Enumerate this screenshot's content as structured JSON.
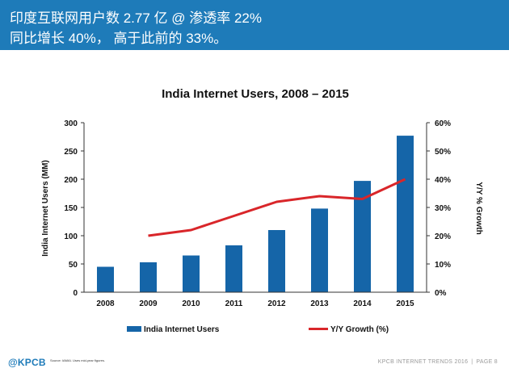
{
  "header": {
    "line1": "印度互联网用户数 2.77 亿 @ 渗透率 22%",
    "line2": "同比增长 40%， 高于此前的 33%。"
  },
  "chart_data": {
    "type": "bar",
    "title": "India Internet Users, 2008 – 2015",
    "categories": [
      "2008",
      "2009",
      "2010",
      "2011",
      "2012",
      "2013",
      "2014",
      "2015"
    ],
    "series": [
      {
        "name": "India Internet Users",
        "type": "bar",
        "axis": "left",
        "color": "#1565a8",
        "values": [
          45,
          53,
          65,
          83,
          110,
          148,
          197,
          277
        ]
      },
      {
        "name": "Y/Y Growth (%)",
        "type": "line",
        "axis": "right",
        "color": "#d9262a",
        "values": [
          null,
          20,
          22,
          27,
          32,
          34,
          33,
          40
        ]
      }
    ],
    "ylabel": "India Internet Users (MM)",
    "ylim": [
      0,
      300
    ],
    "yticks": [
      "0",
      "50",
      "100",
      "150",
      "200",
      "250",
      "300"
    ],
    "y2label": "Y/Y % Growth",
    "y2lim": [
      0,
      60
    ],
    "y2ticks": [
      "0%",
      "10%",
      "20%",
      "30%",
      "40%",
      "50%",
      "60%"
    ],
    "grid": false,
    "legend_position": "bottom"
  },
  "footer": {
    "logo": "@KPCB",
    "source": "Source: IAMAI. Uses mid-year figures.",
    "right_text": "KPCB INTERNET TRENDS 2016",
    "separator": "|",
    "page_label": "PAGE 8"
  }
}
